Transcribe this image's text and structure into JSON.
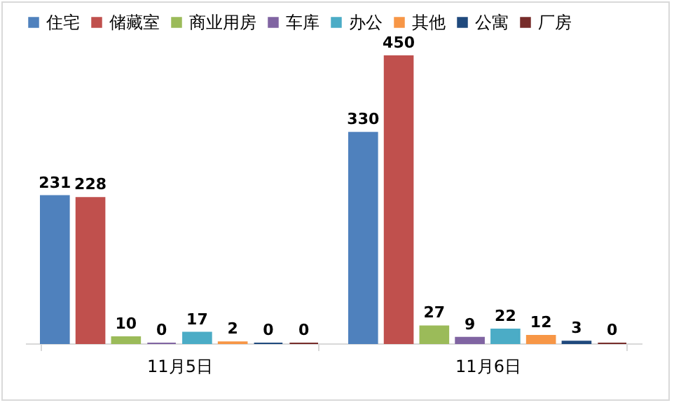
{
  "chart_data": {
    "type": "bar",
    "categories": [
      "11月5日",
      "11月6日"
    ],
    "series": [
      {
        "name": "住宅",
        "color": "#4f81bd",
        "values": [
          231,
          330
        ]
      },
      {
        "name": "储藏室",
        "color": "#c0504d",
        "values": [
          228,
          450
        ]
      },
      {
        "name": "商业用房",
        "color": "#9bbb59",
        "values": [
          10,
          27
        ]
      },
      {
        "name": "车库",
        "color": "#8064a2",
        "values": [
          0,
          9
        ]
      },
      {
        "name": "办公",
        "color": "#4bacc6",
        "values": [
          17,
          22
        ]
      },
      {
        "name": "其他",
        "color": "#f79646",
        "values": [
          2,
          12
        ]
      },
      {
        "name": "公寓",
        "color": "#1f497d",
        "values": [
          0,
          3
        ]
      },
      {
        "name": "厂房",
        "color": "#772c2a",
        "values": [
          0,
          0
        ]
      }
    ],
    "data_labels": true,
    "legend": "top",
    "grid": false,
    "tick_labels": "x"
  }
}
